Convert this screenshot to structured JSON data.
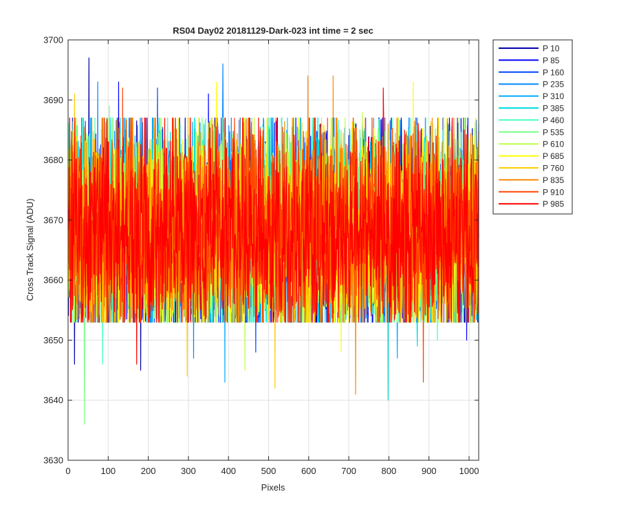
{
  "chart_data": {
    "type": "line",
    "title": "RS04 Day02 20181129-Dark-023 int time = 2 sec",
    "xlabel": "Pixels",
    "ylabel": "Cross Track Signal (ADU)",
    "xlim": [
      0,
      1024
    ],
    "ylim": [
      3630,
      3700
    ],
    "xticks": [
      0,
      100,
      200,
      300,
      400,
      500,
      600,
      700,
      800,
      900,
      1000
    ],
    "yticks": [
      3630,
      3640,
      3650,
      3660,
      3670,
      3680,
      3690,
      3700
    ],
    "xtick_labels": [
      "0",
      "100",
      "200",
      "300",
      "400",
      "500",
      "600",
      "700",
      "800",
      "900",
      "1000"
    ],
    "ytick_labels": [
      "3630",
      "3640",
      "3650",
      "3660",
      "3670",
      "3680",
      "3690",
      "3700"
    ],
    "grid": true,
    "legend_position": "outside-right-top",
    "noise_model": {
      "mean": 3668,
      "typical_range": [
        3650,
        3690
      ],
      "points_per_series": 1024
    },
    "series": [
      {
        "name": "P 10",
        "color": "#0000aa",
        "extremes": [
          {
            "x": 51,
            "y": 3697
          },
          {
            "x": 15,
            "y": 3646
          },
          {
            "x": 180,
            "y": 3645
          }
        ]
      },
      {
        "name": "P 85",
        "color": "#0000ff",
        "extremes": [
          {
            "x": 125,
            "y": 3693
          },
          {
            "x": 349,
            "y": 3691
          },
          {
            "x": 993,
            "y": 3650
          }
        ]
      },
      {
        "name": "P 160",
        "color": "#0044ff",
        "extremes": [
          {
            "x": 222,
            "y": 3692
          },
          {
            "x": 467,
            "y": 3648
          }
        ]
      },
      {
        "name": "P 235",
        "color": "#0088ff",
        "extremes": [
          {
            "x": 385,
            "y": 3696
          },
          {
            "x": 73,
            "y": 3693
          },
          {
            "x": 312,
            "y": 3647
          }
        ]
      },
      {
        "name": "P 310",
        "color": "#00aaff",
        "extremes": [
          {
            "x": 390,
            "y": 3643
          },
          {
            "x": 820,
            "y": 3647
          }
        ]
      },
      {
        "name": "P 385",
        "color": "#00dddd",
        "extremes": [
          {
            "x": 797,
            "y": 3640
          },
          {
            "x": 870,
            "y": 3649
          }
        ]
      },
      {
        "name": "P 460",
        "color": "#44ffbb",
        "extremes": [
          {
            "x": 920,
            "y": 3650
          },
          {
            "x": 85,
            "y": 3646
          }
        ]
      },
      {
        "name": "P 535",
        "color": "#77ff88",
        "extremes": [
          {
            "x": 40,
            "y": 3636
          },
          {
            "x": 102,
            "y": 3689
          }
        ]
      },
      {
        "name": "P 610",
        "color": "#bbff44",
        "extremes": [
          {
            "x": 440,
            "y": 3645
          },
          {
            "x": 733,
            "y": 3688
          }
        ]
      },
      {
        "name": "P 685",
        "color": "#ffff00",
        "extremes": [
          {
            "x": 369,
            "y": 3693
          },
          {
            "x": 860,
            "y": 3693
          },
          {
            "x": 680,
            "y": 3648
          }
        ]
      },
      {
        "name": "P 760",
        "color": "#ffcc00",
        "extremes": [
          {
            "x": 15,
            "y": 3691
          },
          {
            "x": 515,
            "y": 3642
          },
          {
            "x": 296,
            "y": 3644
          }
        ]
      },
      {
        "name": "P 835",
        "color": "#ff8800",
        "extremes": [
          {
            "x": 597,
            "y": 3694
          },
          {
            "x": 660,
            "y": 3694
          },
          {
            "x": 716,
            "y": 3641
          }
        ]
      },
      {
        "name": "P 910",
        "color": "#ff4400",
        "extremes": [
          {
            "x": 135,
            "y": 3692
          },
          {
            "x": 885,
            "y": 3643
          }
        ]
      },
      {
        "name": "P 985",
        "color": "#ff0000",
        "extremes": [
          {
            "x": 785,
            "y": 3692
          },
          {
            "x": 170,
            "y": 3646
          }
        ]
      }
    ]
  }
}
